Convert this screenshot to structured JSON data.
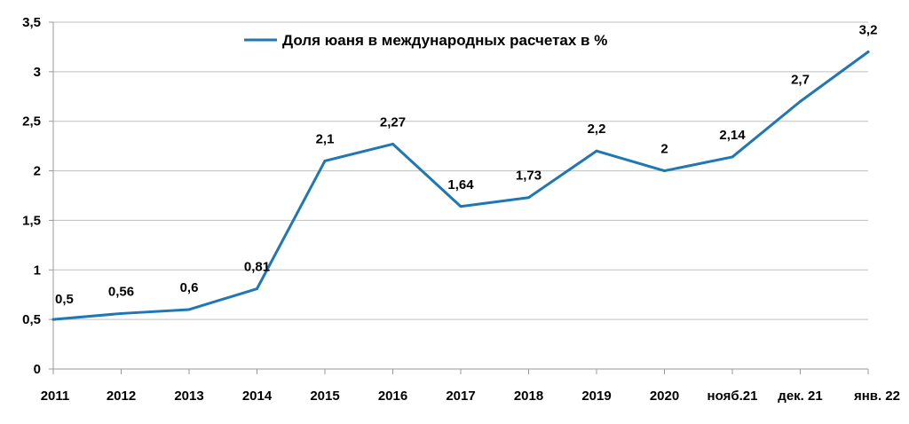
{
  "chart_data": {
    "type": "line",
    "title": "",
    "xlabel": "",
    "ylabel": "",
    "categories": [
      "2011",
      "2012",
      "2013",
      "2014",
      "2015",
      "2016",
      "2017",
      "2018",
      "2019",
      "2020",
      "нояб.21",
      "дек. 21",
      "янв. 22"
    ],
    "y_tick_labels": [
      "0",
      "0,5",
      "1",
      "1,5",
      "2",
      "2,5",
      "3",
      "3,5"
    ],
    "ylim": [
      0,
      3.5
    ],
    "grid": true,
    "legend": "top-center",
    "series": [
      {
        "name": "Доля юаня в международных расчетах в %",
        "color": "#1f77b4",
        "values": [
          0.5,
          0.56,
          0.6,
          0.81,
          2.1,
          2.27,
          1.64,
          1.73,
          2.2,
          2.0,
          2.14,
          2.7,
          3.2
        ],
        "labels": [
          "0,5",
          "0,56",
          "0,6",
          "0,81",
          "2,1",
          "2,27",
          "1,64",
          "1,73",
          "2,2",
          "2",
          "2,14",
          "2,7",
          "3,2"
        ]
      }
    ]
  }
}
